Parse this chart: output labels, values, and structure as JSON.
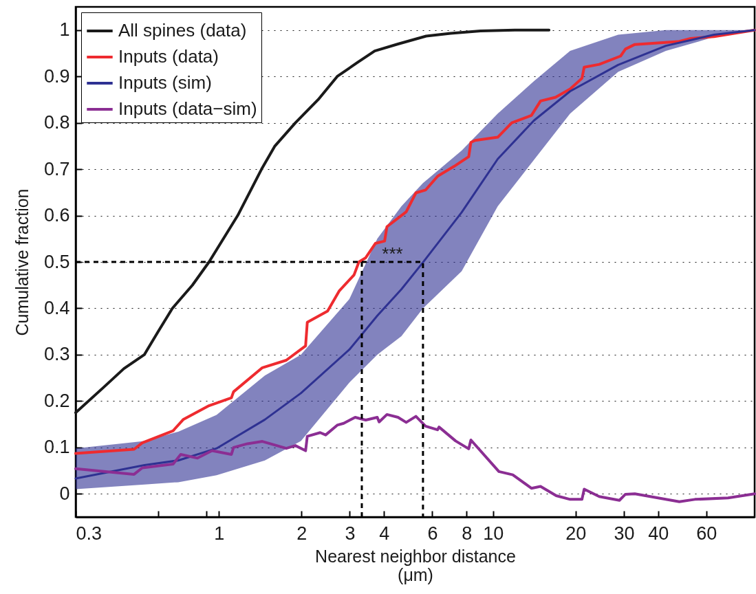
{
  "chart_data": {
    "type": "line",
    "xlabel": "Nearest neighbor distance (μm)",
    "ylabel": "Cumulative fraction",
    "log": "x",
    "grid": "y",
    "legend": "top left",
    "xlim": [
      0.3,
      90
    ],
    "ylim": [
      -0.05,
      1.05
    ],
    "xticks": [
      0.3,
      {
        "value": 0.6,
        "label": null
      },
      {
        "value": 0.9,
        "label": null
      },
      1,
      2,
      3,
      4,
      6,
      8,
      10,
      20,
      30,
      40,
      60
    ],
    "yticks": [
      0,
      0.1,
      0.2,
      0.3,
      0.4,
      0.5,
      0.6,
      0.7,
      0.8,
      0.9,
      1
    ],
    "annotations": [
      "***"
    ],
    "series": [
      {
        "name": "All spines (data)",
        "color": "#1a1a1a",
        "x": [
          0.3,
          0.38,
          0.45,
          0.534,
          0.6,
          0.676,
          0.8,
          0.92,
          1.17,
          1.43,
          1.6,
          1.9,
          2.3,
          2.7,
          3.2,
          3.7,
          4.5,
          5.7,
          7,
          9,
          12,
          16
        ],
        "values": [
          0.175,
          0.23,
          0.27,
          0.3,
          0.35,
          0.4,
          0.45,
          0.5,
          0.6,
          0.7,
          0.75,
          0.8,
          0.85,
          0.9,
          0.93,
          0.955,
          0.97,
          0.987,
          0.993,
          0.998,
          1.0,
          1.0
        ]
      },
      {
        "name": "Inputs (data)",
        "color": "#ee2b2f",
        "x": [
          0.3,
          0.49,
          0.525,
          0.68,
          0.74,
          0.92,
          1.11,
          1.13,
          1.44,
          1.76,
          2.07,
          2.1,
          2.49,
          2.75,
          3.11,
          3.24,
          3.43,
          3.72,
          4.02,
          4.1,
          4.82,
          5.23,
          5.67,
          6.28,
          7.2,
          8.15,
          8.3,
          8.6,
          10.4,
          11.7,
          13.8,
          14.9,
          16.9,
          19.1,
          21.1,
          21.5,
          24.4,
          29.2,
          30.4,
          32.9,
          47.3,
          52.6,
          64,
          90
        ],
        "values": [
          0.087,
          0.096,
          0.11,
          0.136,
          0.16,
          0.19,
          0.207,
          0.22,
          0.272,
          0.288,
          0.319,
          0.37,
          0.394,
          0.438,
          0.472,
          0.5,
          0.509,
          0.54,
          0.545,
          0.576,
          0.608,
          0.649,
          0.655,
          0.685,
          0.706,
          0.727,
          0.758,
          0.762,
          0.769,
          0.8,
          0.816,
          0.847,
          0.855,
          0.873,
          0.896,
          0.92,
          0.926,
          0.944,
          0.959,
          0.969,
          0.975,
          0.982,
          0.986,
          1.0
        ]
      },
      {
        "name": "Inputs (sim)",
        "color": "#2e3192",
        "x": [
          0.3,
          0.535,
          0.71,
          0.98,
          1.47,
          1.99,
          2.99,
          3.78,
          4.63,
          5.55,
          7.68,
          10.4,
          14.1,
          19.1,
          28.6,
          42.7,
          64,
          90
        ],
        "values": [
          0.033,
          0.062,
          0.072,
          0.098,
          0.16,
          0.217,
          0.311,
          0.384,
          0.441,
          0.499,
          0.607,
          0.722,
          0.805,
          0.868,
          0.925,
          0.966,
          0.99,
          1.0
        ],
        "lower": [
          0.01,
          0.02,
          0.025,
          0.04,
          0.072,
          0.114,
          0.24,
          0.3,
          0.34,
          0.4,
          0.48,
          0.62,
          0.72,
          0.82,
          0.91,
          0.955,
          0.985,
          1.0
        ],
        "upper": [
          0.098,
          0.114,
          0.134,
          0.17,
          0.255,
          0.3,
          0.42,
          0.55,
          0.62,
          0.67,
          0.74,
          0.82,
          0.89,
          0.955,
          0.99,
          1.0,
          1.0,
          1.0
        ]
      },
      {
        "name": "Inputs (data−sim)",
        "color": "#8b2e93",
        "x": [
          0.3,
          0.49,
          0.525,
          0.68,
          0.725,
          0.835,
          0.943,
          1.11,
          1.13,
          1.27,
          1.44,
          1.76,
          1.9,
          2.07,
          2.1,
          2.34,
          2.45,
          2.7,
          2.85,
          3.14,
          3.43,
          3.78,
          3.84,
          4.1,
          4.5,
          4.82,
          5.23,
          5.67,
          6.27,
          6.35,
          7.3,
          8.15,
          8.3,
          10.5,
          11.8,
          13.8,
          14.9,
          17.0,
          19.1,
          21.1,
          21.5,
          24.4,
          28.9,
          30.4,
          32.9,
          47.8,
          54.5,
          72,
          90
        ],
        "values": [
          0.054,
          0.042,
          0.056,
          0.064,
          0.085,
          0.077,
          0.093,
          0.085,
          0.1,
          0.108,
          0.113,
          0.098,
          0.104,
          0.093,
          0.124,
          0.132,
          0.127,
          0.148,
          0.152,
          0.165,
          0.159,
          0.165,
          0.155,
          0.171,
          0.165,
          0.154,
          0.167,
          0.146,
          0.138,
          0.144,
          0.114,
          0.097,
          0.116,
          0.048,
          0.041,
          0.012,
          0.016,
          -0.004,
          -0.012,
          -0.012,
          0.01,
          -0.006,
          -0.014,
          -0.001,
          0.0,
          -0.017,
          -0.012,
          -0.009,
          0.0
        ]
      },
      {
        "color": "#000000",
        "line_style": "dashed",
        "x": [
          0.3,
          5.55,
          5.55
        ],
        "values": [
          0.5,
          0.5,
          -0.05
        ]
      },
      {
        "color": "#000000",
        "line_style": "dashed",
        "x": [
          3.32,
          3.32
        ],
        "values": [
          0.5,
          -0.05
        ]
      }
    ]
  }
}
